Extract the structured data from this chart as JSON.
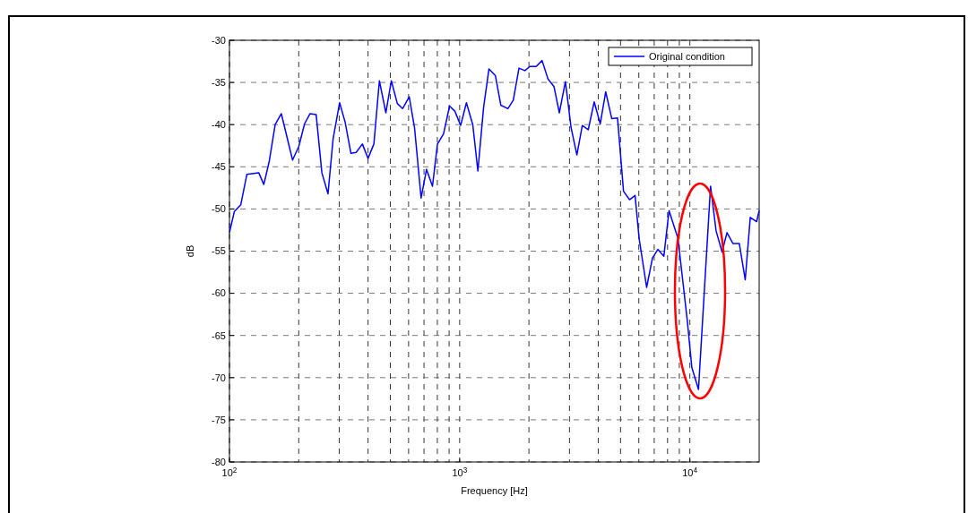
{
  "chart_data": {
    "type": "line",
    "xlabel": "Frequency [Hz]",
    "ylabel": "dB",
    "log": "x",
    "grid": true,
    "legend": "top right",
    "line_style": "solid",
    "marker": "none",
    "xlim": [
      100,
      20000
    ],
    "ylim": [
      -80,
      -30
    ],
    "xticks": [
      {
        "value": 100,
        "label": "10$^{2}$"
      },
      {
        "value": 1000,
        "label": "10$^{3}$"
      },
      {
        "value": 10000,
        "label": "10$^{4}$"
      }
    ],
    "yticks": [
      -80,
      -75,
      -70,
      -65,
      -60,
      -55,
      -50,
      -45,
      -40,
      -35,
      -30
    ],
    "x": [
      100,
      105,
      112,
      119,
      134,
      141,
      149,
      158,
      168,
      188,
      200,
      212,
      224,
      238,
      252,
      268,
      282,
      301,
      318,
      337,
      355,
      378,
      400,
      424,
      448,
      478,
      505,
      536,
      565,
      604,
      637,
      680,
      718,
      762,
      801,
      851,
      904,
      953,
      1010,
      1070,
      1140,
      1200,
      1270,
      1340,
      1430,
      1510,
      1620,
      1710,
      1810,
      1920,
      2020,
      2150,
      2280,
      2420,
      2570,
      2710,
      2880,
      3050,
      3230,
      3410,
      3620,
      3840,
      4080,
      4310,
      4580,
      4850,
      5150,
      5470,
      5780,
      6020,
      6490,
      6880,
      7260,
      7710,
      8120,
      8880,
      9760,
      10200,
      10900,
      12300,
      13000,
      13800,
      14500,
      15400,
      16400,
      17400,
      18300,
      19500,
      20000
    ],
    "series": [
      {
        "name": "Original condition",
        "color": "#0000ff",
        "values": [
          -52.8,
          -50.3,
          -49.5,
          -45.9,
          -45.7,
          -47.1,
          -44.3,
          -40.0,
          -38.7,
          -44.2,
          -42.6,
          -39.9,
          -38.7,
          -38.8,
          -45.7,
          -48.2,
          -41.7,
          -37.4,
          -39.7,
          -43.4,
          -43.3,
          -42.3,
          -44.0,
          -42.3,
          -34.8,
          -38.6,
          -34.8,
          -37.5,
          -38.1,
          -36.7,
          -40.4,
          -48.7,
          -45.3,
          -47.3,
          -42.3,
          -41.1,
          -37.8,
          -38.4,
          -40.1,
          -37.4,
          -40.0,
          -45.5,
          -38.0,
          -33.4,
          -34.2,
          -37.7,
          -38.1,
          -37.1,
          -33.3,
          -33.6,
          -33.1,
          -33.1,
          -32.4,
          -34.6,
          -35.5,
          -38.6,
          -34.9,
          -40.4,
          -43.6,
          -40.1,
          -40.6,
          -37.3,
          -39.9,
          -36.1,
          -39.3,
          -39.2,
          -47.9,
          -48.9,
          -48.4,
          -53.5,
          -59.3,
          -55.8,
          -54.8,
          -55.6,
          -50.2,
          -53.5,
          -63.4,
          -68.8,
          -71.4,
          -47.3,
          -52.6,
          -55.1,
          -52.8,
          -54.1,
          -54.1,
          -58.4,
          -51.0,
          -51.5,
          -50.2
        ]
      }
    ]
  }
}
